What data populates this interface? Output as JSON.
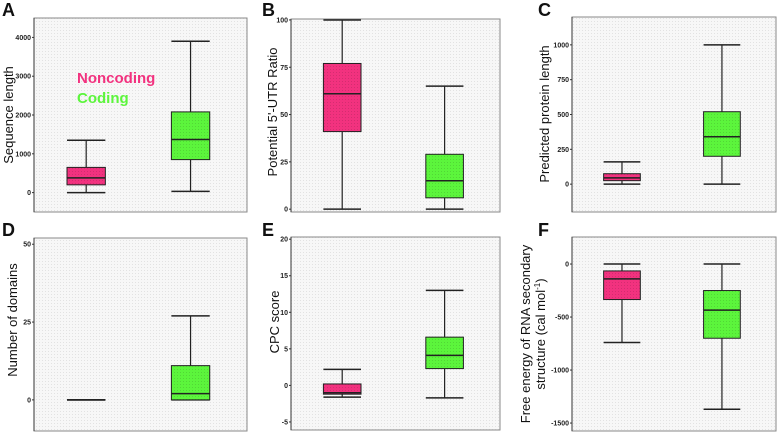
{
  "colors": {
    "noncoding": "#f2327f",
    "coding": "#5cf53c",
    "frame_bg": "#f6f6f6"
  },
  "legend": {
    "noncoding": "Noncoding",
    "coding": "Coding"
  },
  "chart_data": [
    {
      "type": "box",
      "panel": "A",
      "ylabel": "Sequence length",
      "ylim": [
        -500,
        4500
      ],
      "ticks": [
        "0",
        "1000",
        "2000",
        "3000",
        "4000"
      ],
      "tick_values": [
        0,
        1000,
        2000,
        3000,
        4000
      ],
      "series": [
        {
          "name": "Noncoding",
          "min": 0,
          "q1": 200,
          "median": 380,
          "q3": 650,
          "max": 1350
        },
        {
          "name": "Coding",
          "min": 30,
          "q1": 850,
          "median": 1370,
          "q3": 2080,
          "max": 3900
        }
      ]
    },
    {
      "type": "box",
      "panel": "B",
      "ylabel": "Potential 5'-UTR Ratio",
      "ylim": [
        -1.5,
        100.5
      ],
      "ticks": [
        "0",
        "25",
        "50",
        "75",
        "100"
      ],
      "tick_values": [
        0,
        25,
        50,
        75,
        100
      ],
      "series": [
        {
          "name": "Noncoding",
          "min": 0,
          "q1": 41,
          "median": 61,
          "q3": 77,
          "max": 100
        },
        {
          "name": "Coding",
          "min": 0,
          "q1": 6,
          "median": 15,
          "q3": 29,
          "max": 65
        }
      ]
    },
    {
      "type": "box",
      "panel": "C",
      "ylabel": "Predicted protein length",
      "ylim": [
        -200,
        1200
      ],
      "ticks": [
        "0",
        "250",
        "500",
        "750",
        "1000"
      ],
      "tick_values": [
        0,
        250,
        500,
        750,
        1000
      ],
      "series": [
        {
          "name": "Noncoding",
          "min": 0,
          "q1": 25,
          "median": 45,
          "q3": 75,
          "max": 160
        },
        {
          "name": "Coding",
          "min": 0,
          "q1": 200,
          "median": 340,
          "q3": 520,
          "max": 1000
        }
      ]
    },
    {
      "type": "box",
      "panel": "D",
      "ylabel": "Number of domains",
      "ylim": [
        -10,
        52
      ],
      "ticks": [
        "0",
        "25",
        "50"
      ],
      "tick_values": [
        0,
        25,
        50
      ],
      "series": [
        {
          "name": "Noncoding",
          "min": 0,
          "q1": 0,
          "median": 0,
          "q3": 0,
          "max": 0
        },
        {
          "name": "Coding",
          "min": 0,
          "q1": 0,
          "median": 2,
          "q3": 11,
          "max": 27
        }
      ]
    },
    {
      "type": "box",
      "panel": "E",
      "ylabel": "CPC score",
      "ylim": [
        -6.1,
        20.3
      ],
      "ticks": [
        "-5",
        "0",
        "5",
        "10",
        "15",
        "20"
      ],
      "tick_values": [
        -5,
        0,
        5,
        10,
        15,
        20
      ],
      "series": [
        {
          "name": "Noncoding",
          "min": -1.6,
          "q1": -1.2,
          "median": -1.0,
          "q3": 0.2,
          "max": 2.2
        },
        {
          "name": "Coding",
          "min": -1.7,
          "q1": 2.3,
          "median": 4.1,
          "q3": 6.6,
          "max": 13
        }
      ]
    },
    {
      "type": "box",
      "panel": "F",
      "ylabel": "Free energy of RNA secondary",
      "ylabel2": "structure (cal mol",
      "ylabel_sup": "-1",
      "ylabel_end": ")",
      "ylim": [
        -1575,
        255
      ],
      "ticks": [
        "-1500",
        "-1000",
        "-500",
        "0"
      ],
      "tick_values": [
        -1500,
        -1000,
        -500,
        0
      ],
      "series": [
        {
          "name": "Noncoding",
          "min": -740,
          "q1": -335,
          "median": -140,
          "q3": -65,
          "max": 0
        },
        {
          "name": "Coding",
          "min": -1370,
          "q1": -700,
          "median": -435,
          "q3": -250,
          "max": 0
        }
      ]
    }
  ]
}
